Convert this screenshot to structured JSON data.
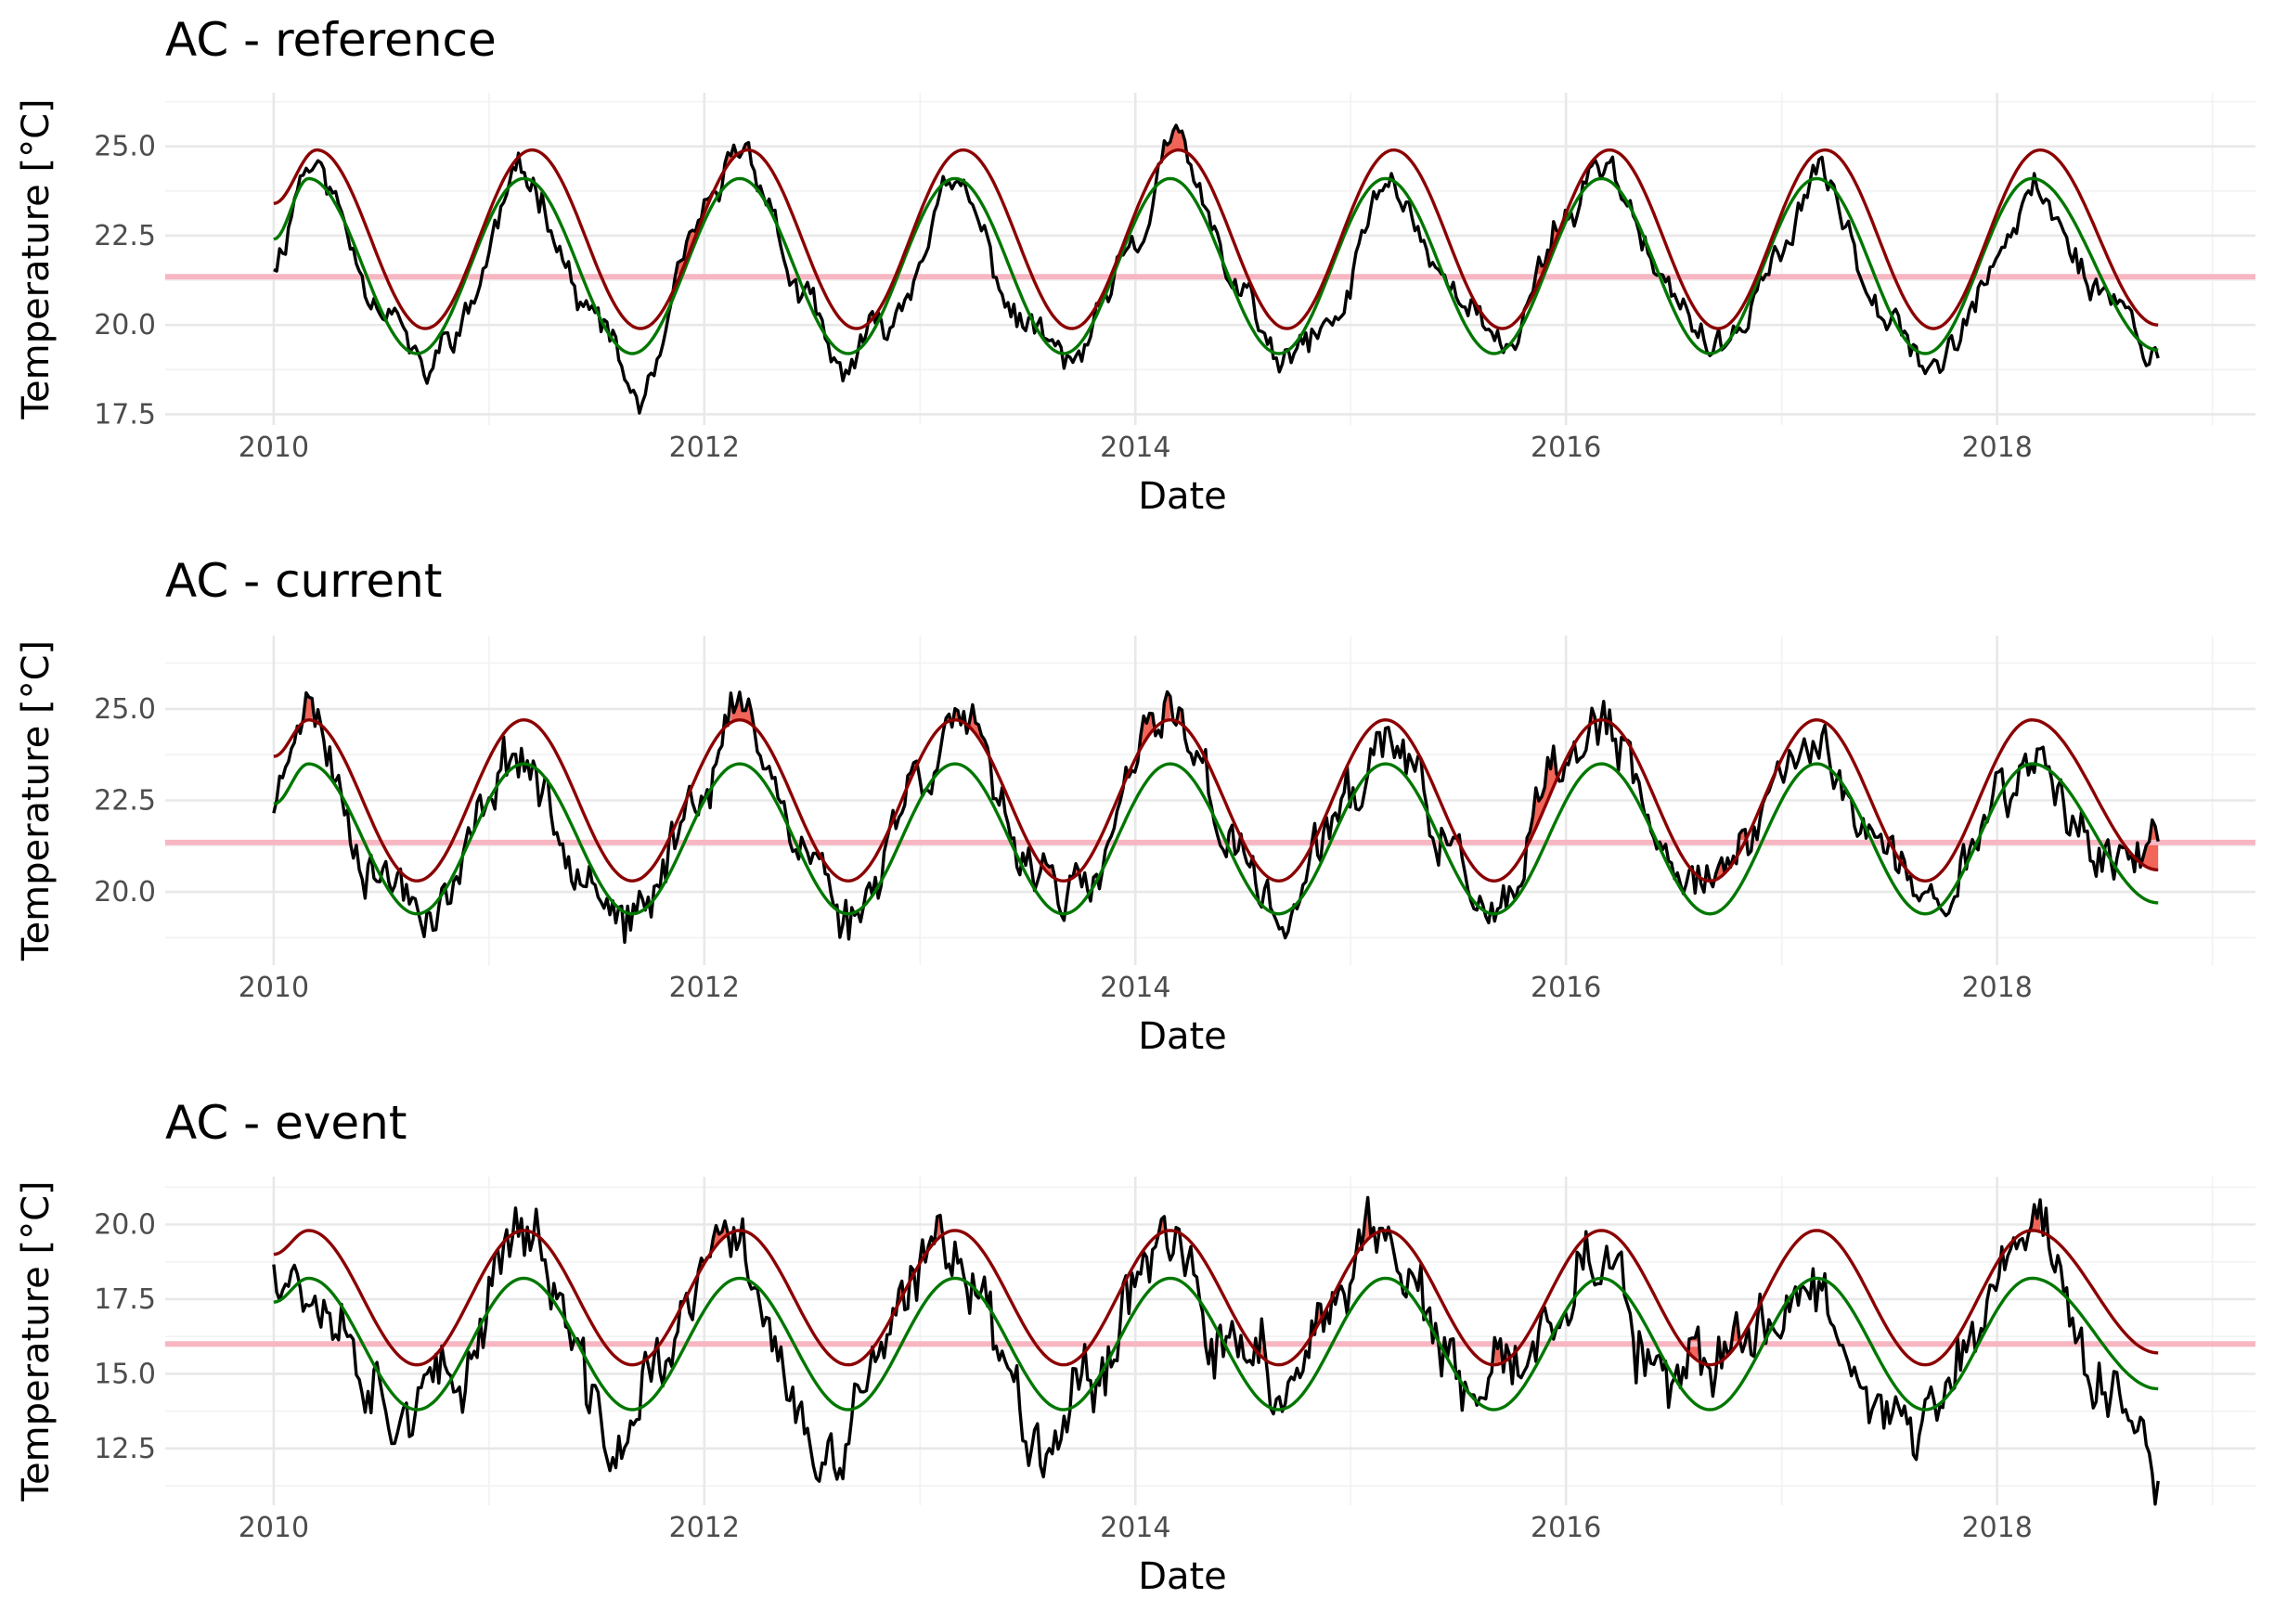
{
  "chart_data": [
    {
      "type": "line",
      "title": "AC - reference",
      "xlabel": "Date",
      "ylabel": "Temperature [°C]",
      "xlim": [
        "2009-07-01",
        "2019-03-15"
      ],
      "ylim": [
        17.2,
        26.5
      ],
      "x_ticks": [
        "2010",
        "2012",
        "2014",
        "2016",
        "2018"
      ],
      "y_ticks": [
        "17.5",
        "20.0",
        "22.5",
        "25.0"
      ],
      "grid": true,
      "legend": "none",
      "threshold_line": 21.35,
      "series": [
        {
          "kind": "temperature",
          "color": "#000000",
          "seed": 11,
          "noise": 0.35,
          "x": [
            "2010-01-01",
            "2010-03-01",
            "2010-07-15",
            "2010-09-15",
            "2010-11-01",
            "2011-03-01",
            "2011-07-01",
            "2011-09-15",
            "2012-01-01",
            "2012-03-01",
            "2012-07-01",
            "2012-08-15",
            "2012-11-01",
            "2013-03-01",
            "2013-07-01",
            "2013-09-15",
            "2014-01-01",
            "2014-03-01",
            "2014-07-01",
            "2014-09-01",
            "2014-12-01",
            "2015-03-01",
            "2015-07-01",
            "2015-09-15",
            "2016-01-01",
            "2016-03-01",
            "2016-07-01",
            "2016-09-15",
            "2017-01-01",
            "2017-03-01",
            "2017-07-01",
            "2017-09-15",
            "2018-01-01",
            "2018-03-01",
            "2018-07-01",
            "2018-10-01"
          ],
          "y": [
            21.8,
            24.5,
            20.5,
            18.6,
            19.8,
            24.2,
            20.2,
            17.9,
            23.0,
            25.0,
            20.5,
            18.7,
            20.0,
            23.8,
            20.0,
            19.0,
            22.0,
            25.2,
            21.0,
            18.9,
            20.0,
            24.0,
            21.0,
            19.3,
            23.0,
            24.6,
            20.8,
            19.2,
            22.0,
            24.2,
            20.5,
            18.8,
            21.5,
            23.8,
            21.0,
            19.2
          ]
        },
        {
          "kind": "threshold_90th_percentile",
          "color": "#8b0000",
          "x": [
            "2010-01-01",
            "2010-03-15",
            "2010-09-15",
            "2011-03-15",
            "2011-09-15",
            "2012-03-15",
            "2012-09-15",
            "2013-03-15",
            "2013-09-15",
            "2014-03-15",
            "2014-09-15",
            "2015-03-15",
            "2015-09-15",
            "2016-03-15",
            "2016-09-15",
            "2017-03-15",
            "2017-09-15",
            "2018-03-15",
            "2018-10-01"
          ],
          "y": [
            23.4,
            24.9,
            19.9,
            24.9,
            19.9,
            24.9,
            19.9,
            24.9,
            19.9,
            24.9,
            19.9,
            24.9,
            19.9,
            24.9,
            19.9,
            24.9,
            19.9,
            24.9,
            20.0
          ]
        },
        {
          "kind": "seasonal_climatology",
          "color": "#007700",
          "x": [
            "2010-01-01",
            "2010-03-01",
            "2010-09-01",
            "2011-03-01",
            "2011-09-01",
            "2012-03-01",
            "2012-09-01",
            "2013-03-01",
            "2013-09-01",
            "2014-03-01",
            "2014-09-01",
            "2015-03-01",
            "2015-09-01",
            "2016-03-01",
            "2016-09-01",
            "2017-03-01",
            "2017-09-01",
            "2018-03-01",
            "2018-10-01"
          ],
          "y": [
            22.4,
            24.1,
            19.2,
            24.1,
            19.2,
            24.1,
            19.2,
            24.1,
            19.2,
            24.1,
            19.2,
            24.1,
            19.2,
            24.1,
            19.2,
            24.1,
            19.2,
            24.1,
            19.3
          ]
        }
      ]
    },
    {
      "type": "line",
      "title": "AC - current",
      "xlabel": "Date",
      "ylabel": "Temperature [°C]",
      "xlim": [
        "2009-07-01",
        "2019-03-15"
      ],
      "ylim": [
        18.0,
        27.0
      ],
      "x_ticks": [
        "2010",
        "2012",
        "2014",
        "2016",
        "2018"
      ],
      "y_ticks": [
        "20.0",
        "22.5",
        "25.0"
      ],
      "grid": true,
      "legend": "none",
      "threshold_line": 21.35,
      "series": [
        {
          "kind": "temperature",
          "color": "#000000",
          "seed": 23,
          "noise": 0.55,
          "x": [
            "2010-01-01",
            "2010-02-15",
            "2010-07-01",
            "2010-10-01",
            "2011-02-15",
            "2011-06-01",
            "2011-09-01",
            "2012-01-01",
            "2012-03-01",
            "2012-07-01",
            "2012-09-01",
            "2013-01-01",
            "2013-03-01",
            "2013-07-01",
            "2013-10-01",
            "2014-02-01",
            "2014-03-01",
            "2014-07-01",
            "2014-09-01",
            "2015-01-01",
            "2015-03-01",
            "2015-07-01",
            "2015-09-01",
            "2016-01-01",
            "2016-03-01",
            "2016-07-01",
            "2016-10-01",
            "2017-01-15",
            "2017-03-01",
            "2017-07-01",
            "2017-09-15",
            "2018-01-15",
            "2018-03-01",
            "2018-07-01",
            "2018-10-01"
          ],
          "y": [
            22.5,
            25.2,
            20.5,
            19.6,
            23.8,
            21.0,
            19.0,
            23.0,
            25.0,
            21.0,
            19.2,
            23.2,
            24.8,
            21.0,
            19.8,
            24.2,
            25.0,
            21.0,
            19.2,
            22.5,
            24.2,
            21.0,
            19.0,
            23.5,
            24.5,
            20.8,
            20.5,
            23.5,
            24.0,
            21.0,
            19.6,
            22.8,
            23.6,
            21.0,
            20.8
          ]
        },
        {
          "kind": "threshold_90th_percentile",
          "color": "#8b0000",
          "x": [
            "2010-01-01",
            "2010-03-01",
            "2010-09-01",
            "2011-03-01",
            "2011-09-01",
            "2012-03-01",
            "2012-09-01",
            "2013-03-01",
            "2013-09-01",
            "2014-03-01",
            "2014-09-01",
            "2015-03-01",
            "2015-09-01",
            "2016-03-01",
            "2016-09-01",
            "2017-03-01",
            "2017-09-01",
            "2018-03-01",
            "2018-10-01"
          ],
          "y": [
            23.7,
            24.7,
            20.3,
            24.7,
            20.3,
            24.7,
            20.3,
            24.7,
            20.3,
            24.7,
            20.3,
            24.7,
            20.3,
            24.7,
            20.3,
            24.7,
            20.3,
            24.7,
            20.6
          ]
        },
        {
          "kind": "seasonal_climatology",
          "color": "#007700",
          "x": [
            "2010-01-01",
            "2010-03-01",
            "2010-09-01",
            "2011-03-01",
            "2011-09-01",
            "2012-03-01",
            "2012-09-01",
            "2013-03-01",
            "2013-09-01",
            "2014-03-01",
            "2014-09-01",
            "2015-03-01",
            "2015-09-01",
            "2016-03-01",
            "2016-09-01",
            "2017-03-01",
            "2017-09-01",
            "2018-03-01",
            "2018-10-01"
          ],
          "y": [
            22.4,
            23.5,
            19.4,
            23.5,
            19.4,
            23.5,
            19.4,
            23.5,
            19.4,
            23.5,
            19.4,
            23.5,
            19.4,
            23.5,
            19.4,
            23.5,
            19.4,
            23.5,
            19.7
          ]
        }
      ]
    },
    {
      "type": "line",
      "title": "AC - event",
      "xlabel": "Date",
      "ylabel": "Temperature [°C]",
      "xlim": [
        "2009-07-01",
        "2019-03-15"
      ],
      "ylim": [
        10.6,
        21.6
      ],
      "x_ticks": [
        "2010",
        "2012",
        "2014",
        "2016",
        "2018"
      ],
      "y_ticks": [
        "12.5",
        "15.0",
        "17.5",
        "20.0"
      ],
      "grid": true,
      "legend": "none",
      "threshold_line": 16.0,
      "series": [
        {
          "kind": "temperature",
          "color": "#000000",
          "seed": 37,
          "noise": 0.9,
          "x": [
            "2010-01-01",
            "2010-03-01",
            "2010-08-01",
            "2010-11-01",
            "2011-02-15",
            "2011-08-15",
            "2011-10-15",
            "2012-02-15",
            "2012-08-01",
            "2012-10-15",
            "2013-02-15",
            "2013-08-01",
            "2013-10-15",
            "2014-02-15",
            "2014-06-01",
            "2014-08-01",
            "2014-09-01",
            "2015-02-15",
            "2015-08-01",
            "2015-10-15",
            "2016-02-15",
            "2016-07-01",
            "2016-09-01",
            "2017-02-15",
            "2017-08-15",
            "2017-11-01",
            "2018-03-01",
            "2018-07-01",
            "2018-10-01"
          ],
          "y": [
            19.0,
            18.0,
            14.0,
            14.5,
            20.0,
            12.5,
            15.5,
            19.5,
            11.5,
            15.5,
            19.5,
            13.0,
            15.0,
            19.8,
            15.5,
            16.3,
            13.8,
            19.8,
            14.0,
            15.5,
            19.0,
            14.2,
            15.5,
            17.8,
            12.8,
            15.5,
            20.2,
            14.5,
            11.8
          ]
        },
        {
          "kind": "threshold_90th_percentile",
          "color": "#8b0000",
          "x": [
            "2010-01-01",
            "2010-03-01",
            "2010-09-01",
            "2011-03-01",
            "2011-09-01",
            "2012-03-01",
            "2012-09-01",
            "2013-03-01",
            "2013-09-01",
            "2014-03-01",
            "2014-09-01",
            "2015-03-01",
            "2015-09-01",
            "2016-03-01",
            "2016-09-01",
            "2017-03-01",
            "2017-09-01",
            "2018-03-01",
            "2018-10-01"
          ],
          "y": [
            19.0,
            19.8,
            15.3,
            19.8,
            15.3,
            19.8,
            15.3,
            19.8,
            15.3,
            19.8,
            15.3,
            19.8,
            15.3,
            19.8,
            15.3,
            19.8,
            15.3,
            19.8,
            15.7
          ]
        },
        {
          "kind": "seasonal_climatology",
          "color": "#007700",
          "x": [
            "2010-01-01",
            "2010-03-01",
            "2010-09-01",
            "2011-03-01",
            "2011-09-01",
            "2012-03-01",
            "2012-09-01",
            "2013-03-01",
            "2013-09-01",
            "2014-03-01",
            "2014-09-01",
            "2015-03-01",
            "2015-09-01",
            "2016-03-01",
            "2016-09-01",
            "2017-03-01",
            "2017-09-01",
            "2018-03-01",
            "2018-10-01"
          ],
          "y": [
            17.4,
            18.2,
            13.8,
            18.2,
            13.8,
            18.2,
            13.8,
            18.2,
            13.8,
            18.2,
            13.8,
            18.2,
            13.8,
            18.2,
            13.8,
            18.2,
            13.8,
            18.2,
            14.5
          ]
        }
      ]
    }
  ],
  "colors": {
    "temperature": "#000000",
    "threshold": "#8b0000",
    "climatology": "#007700",
    "flat_threshold": "#f7b6c2",
    "event_fill": "#f04a3c",
    "grid_major": "#e8e8e8",
    "grid_minor": "#f2f2f2",
    "tick_text": "#4d4d4d"
  }
}
